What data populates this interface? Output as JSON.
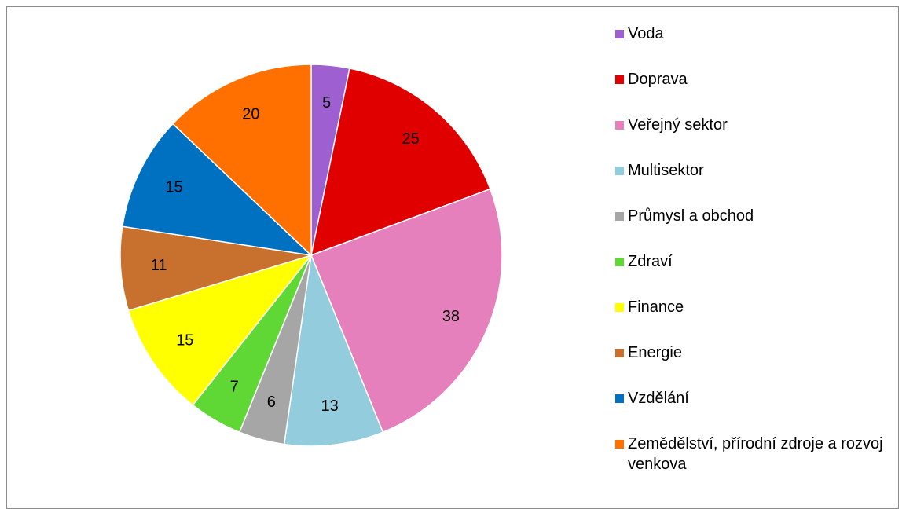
{
  "chart_data": {
    "type": "pie",
    "categories": [
      "Voda",
      "Doprava",
      "Veřejný sektor",
      "Multisektor",
      "Průmysl a obchod",
      "Zdraví",
      "Finance",
      "Energie",
      "Vzdělání",
      "Zemědělství, přírodní zdroje a rozvoj venkova"
    ],
    "values": [
      5,
      25,
      38,
      13,
      6,
      7,
      15,
      11,
      15,
      20
    ],
    "colors": [
      "#9e5fd0",
      "#e00000",
      "#e580bd",
      "#93cddd",
      "#a6a6a6",
      "#5fd835",
      "#ffff00",
      "#c8702e",
      "#0070c0",
      "#ff7000"
    ],
    "legend": "right"
  }
}
